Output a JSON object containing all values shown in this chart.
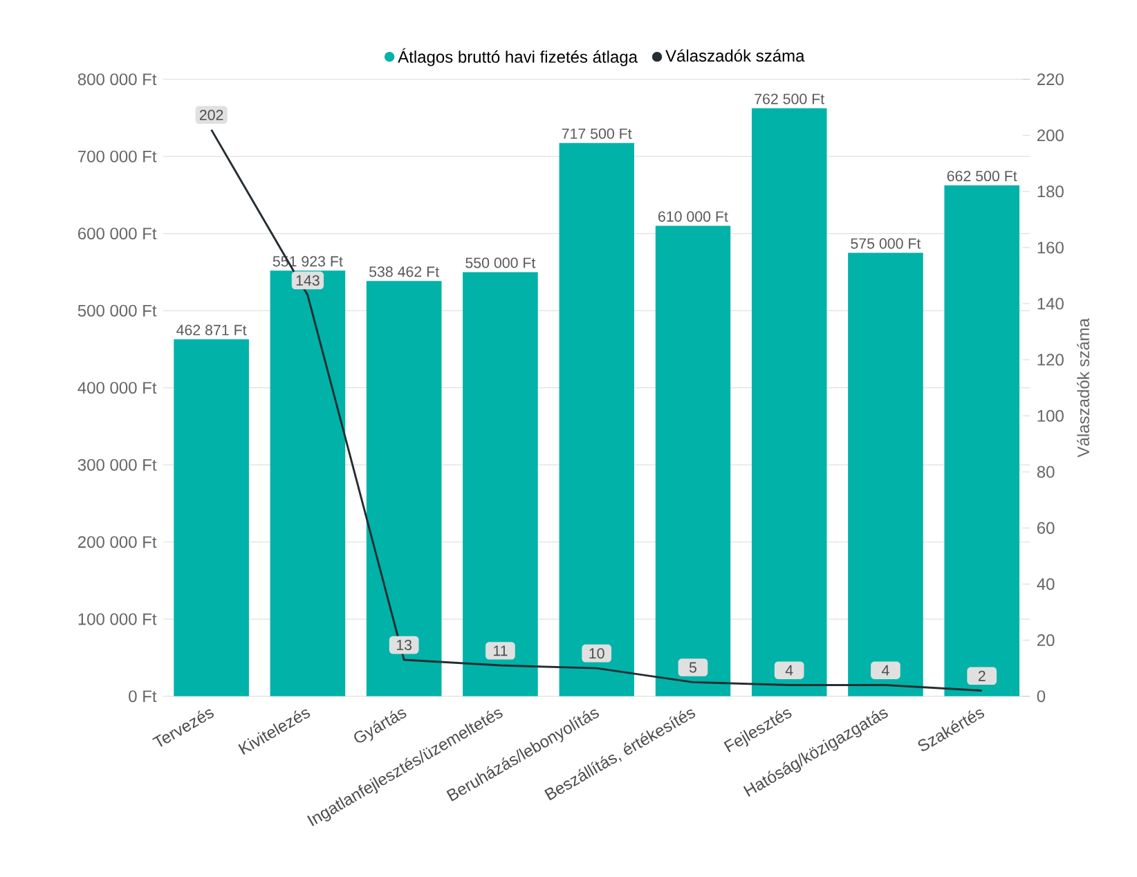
{
  "chart_data": {
    "type": "bar",
    "categories": [
      "Tervezés",
      "Kivitelezés",
      "Gyártás",
      "Ingatlanfejlesztés/üzemeltetés",
      "Beruházás/lebonyolítás",
      "Beszállítás, értékesítés",
      "Fejlesztés",
      "Hatóság/közigazgatás",
      "Szakértés"
    ],
    "series": [
      {
        "name": "Átlagos bruttó havi fizetés átlaga",
        "color": "#01b2a8",
        "values": [
          462871,
          551923,
          538462,
          550000,
          717500,
          610000,
          762500,
          575000,
          662500
        ],
        "value_labels": [
          "462 871 Ft",
          "551 923 Ft",
          "538 462 Ft",
          "550 000 Ft",
          "717 500 Ft",
          "610 000 Ft",
          "762 500 Ft",
          "575 000 Ft",
          "662 500 Ft"
        ]
      },
      {
        "name": "Válaszadók száma",
        "type": "line",
        "axis": "y2",
        "color": "#252e33",
        "marker": "none",
        "values": [
          202,
          143,
          13,
          11,
          10,
          5,
          4,
          4,
          2
        ],
        "value_labels": [
          "202",
          "143",
          "13",
          "11",
          "10",
          "5",
          "4",
          "4",
          "2"
        ]
      }
    ],
    "ylim": [
      0,
      800000
    ],
    "yticks": [
      {
        "value": 0,
        "label": "0 Ft"
      },
      {
        "value": 100000,
        "label": "100 000 Ft"
      },
      {
        "value": 200000,
        "label": "200 000 Ft"
      },
      {
        "value": 300000,
        "label": "300 000 Ft"
      },
      {
        "value": 400000,
        "label": "400 000 Ft"
      },
      {
        "value": 500000,
        "label": "500 000 Ft"
      },
      {
        "value": 600000,
        "label": "600 000 Ft"
      },
      {
        "value": 700000,
        "label": "700 000 Ft"
      },
      {
        "value": 800000,
        "label": "800 000 Ft"
      }
    ],
    "y2lim": [
      0,
      220
    ],
    "y2ticks": [
      0,
      20,
      40,
      60,
      80,
      100,
      120,
      140,
      160,
      180,
      200,
      220
    ],
    "y2label": "Válaszadók száma",
    "grid": "y",
    "legend": "top"
  }
}
